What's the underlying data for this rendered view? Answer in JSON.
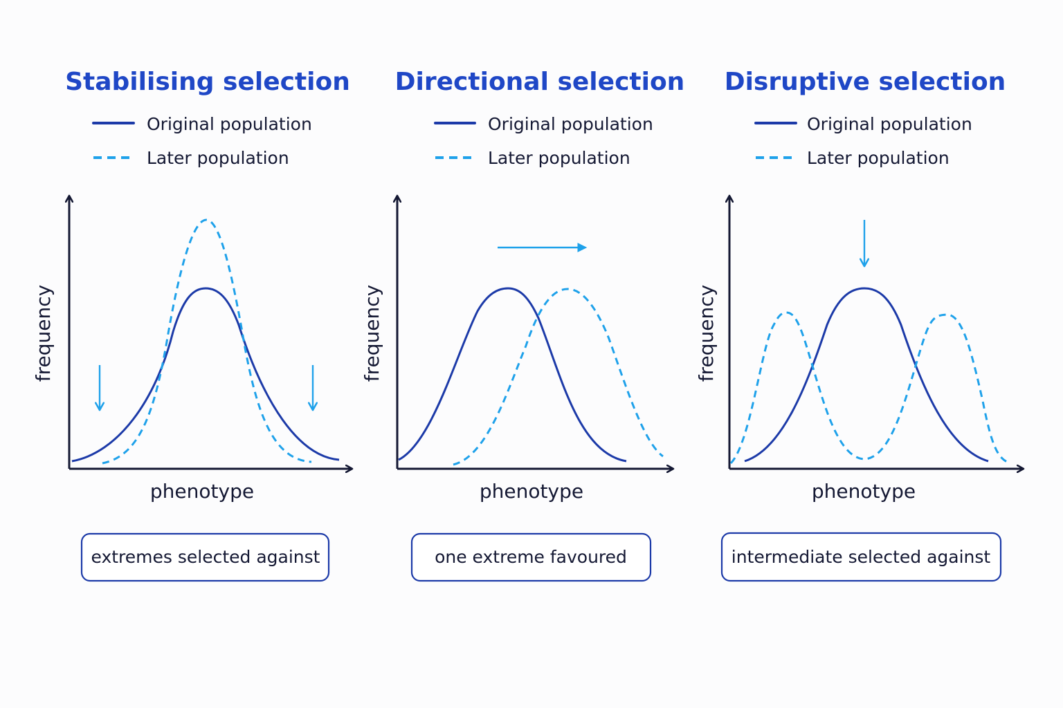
{
  "colors": {
    "title": "#1f47c6",
    "original": "#1c3aa8",
    "later": "#1ea1ea",
    "arrow": "#1ea1ea",
    "axis": "#141833",
    "text": "#141833",
    "caption_border": "#1c3aa8"
  },
  "panels": [
    {
      "title": "Stabilising selection",
      "legend_original": "Original population",
      "legend_later": "Later population",
      "ylabel": "frequency",
      "xlabel": "phenotype",
      "caption": "extremes selected against",
      "arrows_shown": "two down arrows at both extremes"
    },
    {
      "title": "Directional selection",
      "legend_original": "Original population",
      "legend_later": "Later population",
      "ylabel": "frequency",
      "xlabel": "phenotype",
      "caption": "one extreme favoured",
      "arrows_shown": "one right arrow above the curves"
    },
    {
      "title": "Disruptive selection",
      "legend_original": "Original population",
      "legend_later": "Later population",
      "ylabel": "frequency",
      "xlabel": "phenotype",
      "caption": "intermediate selected against",
      "arrows_shown": "one down arrow above the centre"
    }
  ]
}
